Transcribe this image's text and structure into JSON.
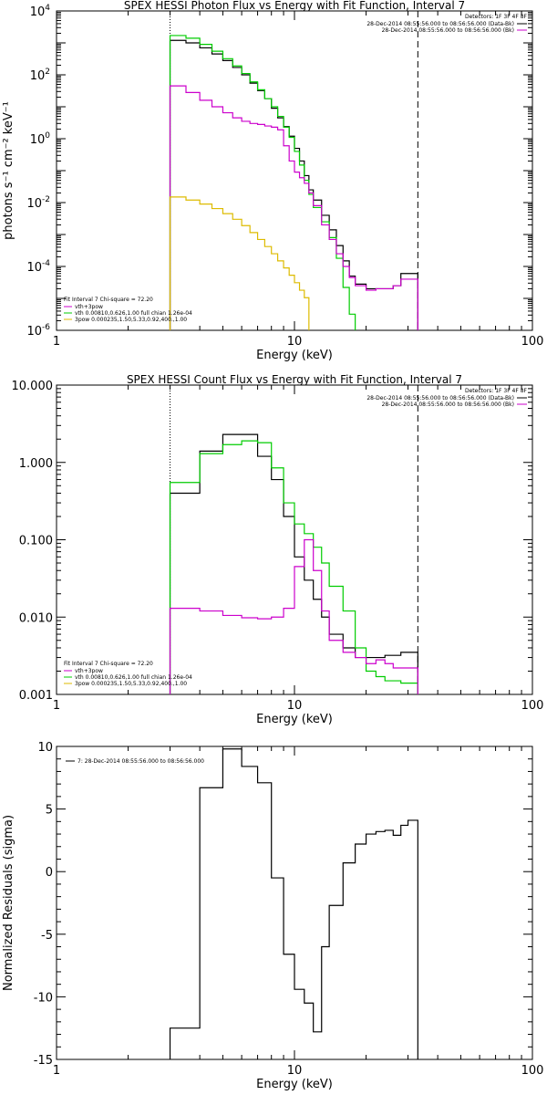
{
  "chart_data": [
    {
      "type": "line",
      "title": "SPEX HESSI Photon Flux vs Energy with Fit Function, Interval 7",
      "xlabel": "Energy (keV)",
      "ylabel": "photons s⁻¹ cm⁻² keV⁻¹",
      "xscale": "log",
      "yscale": "log",
      "xlim": [
        1,
        100
      ],
      "ylim": [
        1e-06,
        10000.0
      ],
      "xticks": [
        {
          "v": 1,
          "label": "1"
        },
        {
          "v": 10,
          "label": "10"
        },
        {
          "v": 100,
          "label": "100"
        }
      ],
      "yticks": [
        {
          "v": 10000.0,
          "base": "10",
          "exp": "4"
        },
        {
          "v": 100.0,
          "base": "10",
          "exp": "2"
        },
        {
          "v": 1.0,
          "base": "10",
          "exp": "0"
        },
        {
          "v": 0.01,
          "base": "10",
          "exp": "-2"
        },
        {
          "v": 0.0001,
          "base": "10",
          "exp": "-4"
        },
        {
          "v": 1e-06,
          "base": "10",
          "exp": "-6"
        }
      ],
      "legend_tr": {
        "heading": "Detectors: 1F 3F 4F 8F",
        "entries": [
          {
            "label": "28-Dec-2014 08:55:56.000 to 08:56:56.000 (Data-Bk)",
            "color": "#000000"
          },
          {
            "label": "28-Dec-2014 08:55:56.000 to 08:56:56.000 (Bk)",
            "color": "#cc00cc"
          }
        ]
      },
      "legend_bl": {
        "heading": "Fit Interval  7    Chi-square = 72.20",
        "entries": [
          {
            "label": "vth+3pow",
            "color": "#cc00cc"
          },
          {
            "label": "vth 0.00810,0.626,1.00   full chian 1.26e-04",
            "color": "#00cc00"
          },
          {
            "label": "3pow 0.000235,1.50,5.33,0.92,400.,1.00",
            "color": "#ddbb00"
          }
        ]
      },
      "vlines": [
        {
          "x": 3.0,
          "style": "dotted"
        },
        {
          "x": 33.0,
          "style": "dashed"
        }
      ],
      "edges": [
        3.0,
        3.5,
        4.0,
        4.5,
        5.0,
        5.5,
        6.0,
        6.5,
        7.0,
        7.5,
        8.0,
        8.5,
        9.0,
        9.5,
        10.0,
        10.5,
        11.0,
        11.5,
        12.0,
        13.0,
        14.0,
        15.0,
        16.0,
        17.0,
        18.0,
        20.0,
        22.0,
        24.0,
        26.0,
        28.0,
        30.0,
        33.0
      ],
      "series": [
        {
          "name": "Data-Bk",
          "color": "#000000",
          "values": [
            1200,
            1000,
            700,
            450,
            280,
            170,
            100,
            55,
            32,
            18,
            9,
            4.5,
            2.4,
            1.2,
            0.5,
            0.2,
            0.07,
            0.025,
            0.012,
            0.004,
            0.0014,
            0.00045,
            0.00015,
            5e-05,
            2.8e-05,
            2e-05,
            2e-05,
            2e-05,
            2.5e-05,
            6e-05,
            6e-05
          ]
        },
        {
          "name": "vth+3pow",
          "color": "#00cc00",
          "values": [
            1700,
            1400,
            900,
            550,
            320,
            190,
            110,
            60,
            34,
            18,
            10,
            5,
            2.3,
            1.1,
            0.4,
            0.15,
            0.05,
            0.018,
            0.007,
            0.0025,
            0.0008,
            0.00018,
            2.2e-05,
            3.2e-06,
            null,
            null,
            null,
            null,
            null,
            null,
            null
          ]
        },
        {
          "name": "Bk",
          "color": "#cc00cc",
          "values": [
            45,
            28,
            16,
            10,
            6.5,
            4.5,
            3.5,
            3.0,
            2.8,
            2.5,
            2.3,
            1.9,
            0.6,
            0.2,
            0.09,
            0.06,
            0.04,
            0.02,
            0.008,
            0.002,
            0.0007,
            0.00025,
            0.0001,
            4.5e-05,
            2.5e-05,
            1.8e-05,
            2e-05,
            2e-05,
            2.5e-05,
            4e-05,
            4e-05
          ]
        },
        {
          "name": "3pow",
          "color": "#ddbb00",
          "values": [
            0.015,
            0.012,
            0.009,
            0.0065,
            0.0045,
            0.003,
            0.0019,
            0.00115,
            0.0007,
            0.00042,
            0.00025,
            0.00015,
            9e-05,
            5.3e-05,
            3.1e-05,
            1.8e-05,
            1.05e-05,
            null,
            null,
            null,
            null,
            null,
            null,
            null,
            null,
            null,
            null,
            null,
            null,
            null,
            null
          ]
        }
      ]
    },
    {
      "type": "line",
      "title": "SPEX HESSI Count Flux vs Energy with Fit Function, Interval 7",
      "xlabel": "Energy (keV)",
      "ylabel": "",
      "xscale": "log",
      "yscale": "log",
      "xlim": [
        1,
        100
      ],
      "ylim": [
        0.001,
        10
      ],
      "xticks": [
        {
          "v": 1,
          "label": "1"
        },
        {
          "v": 10,
          "label": "10"
        },
        {
          "v": 100,
          "label": "100"
        }
      ],
      "yticks": [
        {
          "v": 10,
          "label": "10.000"
        },
        {
          "v": 1,
          "label": "1.000"
        },
        {
          "v": 0.1,
          "label": "0.100"
        },
        {
          "v": 0.01,
          "label": "0.010"
        },
        {
          "v": 0.001,
          "label": "0.001"
        }
      ],
      "legend_tr": {
        "heading": "Detectors: 1F 3F 4F 8F",
        "entries": [
          {
            "label": "28-Dec-2014 08:55:56.000 to 08:56:56.000 (Data-Bk)",
            "color": "#000000"
          },
          {
            "label": "28-Dec-2014 08:55:56.000 to 08:56:56.000 (Bk)",
            "color": "#cc00cc"
          }
        ]
      },
      "legend_bl": {
        "heading": "Fit Interval  7    Chi-square = 72.20",
        "entries": [
          {
            "label": "vth+3pow",
            "color": "#cc00cc"
          },
          {
            "label": "vth 0.00810,0.626,1.00   full chian 1.26e-04",
            "color": "#00cc00"
          },
          {
            "label": "3pow 0.000235,1.50,5.33,0.92,400.,1.00",
            "color": "#ddbb00"
          }
        ]
      },
      "vlines": [
        {
          "x": 3.0,
          "style": "dotted"
        },
        {
          "x": 33.0,
          "style": "dashed"
        }
      ],
      "edges": [
        3.0,
        4.0,
        5.0,
        6.0,
        7.0,
        8.0,
        9.0,
        10.0,
        11.0,
        12.0,
        13.0,
        14.0,
        16.0,
        18.0,
        20.0,
        22.0,
        24.0,
        26.0,
        28.0,
        30.0,
        33.0
      ],
      "series": [
        {
          "name": "Data-Bk",
          "color": "#000000",
          "values": [
            0.4,
            1.4,
            2.3,
            2.3,
            1.2,
            0.6,
            0.2,
            0.06,
            0.03,
            0.017,
            0.01,
            0.006,
            0.004,
            0.003,
            0.003,
            0.003,
            0.0032,
            0.0032,
            0.0035,
            0.0035
          ]
        },
        {
          "name": "vth+3pow",
          "color": "#00cc00",
          "values": [
            0.55,
            1.3,
            1.7,
            1.9,
            1.8,
            0.85,
            0.3,
            0.16,
            0.12,
            0.08,
            0.05,
            0.025,
            0.012,
            0.004,
            0.002,
            0.0017,
            0.0015,
            0.0015,
            0.0014,
            0.0014
          ]
        },
        {
          "name": "Bk",
          "color": "#cc00cc",
          "values": [
            0.013,
            0.012,
            0.0105,
            0.0098,
            0.0095,
            0.01,
            0.013,
            0.045,
            0.1,
            0.04,
            0.012,
            0.005,
            0.0035,
            0.003,
            0.0025,
            0.0028,
            0.0025,
            0.0022,
            0.0022,
            0.0022
          ]
        },
        {
          "name": "3pow",
          "color": "#ddbb00",
          "values": []
        }
      ]
    },
    {
      "type": "line",
      "title": "",
      "xlabel": "Energy (keV)",
      "ylabel": "Normalized Residuals (sigma)",
      "xscale": "log",
      "yscale": "linear",
      "xlim": [
        1,
        100
      ],
      "ylim": [
        -15,
        10
      ],
      "xticks": [
        {
          "v": 1,
          "label": "1"
        },
        {
          "v": 10,
          "label": "10"
        },
        {
          "v": 100,
          "label": "100"
        }
      ],
      "yticks": [
        {
          "v": 10,
          "label": "10"
        },
        {
          "v": 5,
          "label": "5"
        },
        {
          "v": 0,
          "label": "0"
        },
        {
          "v": -5,
          "label": "-5"
        },
        {
          "v": -10,
          "label": "-10"
        },
        {
          "v": -15,
          "label": "-15"
        }
      ],
      "legend_tl": {
        "entries": [
          {
            "label": "7: 28-Dec-2014 08:55:56.000 to 08:56:56.000",
            "color": "#000000"
          }
        ]
      },
      "edges": [
        3.0,
        4.0,
        5.0,
        6.0,
        7.0,
        8.0,
        9.0,
        10.0,
        11.0,
        12.0,
        13.0,
        14.0,
        16.0,
        18.0,
        20.0,
        22.0,
        24.0,
        26.0,
        28.0,
        30.0,
        33.0
      ],
      "series": [
        {
          "name": "",
          "color": "#000000",
          "values": [
            -12.5,
            6.7,
            9.8,
            8.4,
            7.1,
            -0.5,
            -6.6,
            -9.4,
            -10.5,
            -12.8,
            -6.0,
            -2.7,
            0.7,
            2.2,
            3.0,
            3.2,
            3.3,
            2.9,
            3.7,
            4.1
          ]
        }
      ]
    }
  ]
}
